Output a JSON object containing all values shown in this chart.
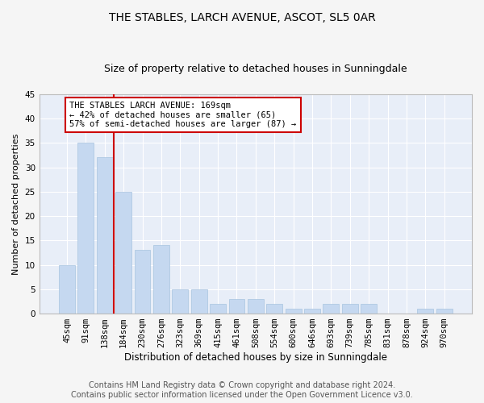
{
  "title": "THE STABLES, LARCH AVENUE, ASCOT, SL5 0AR",
  "subtitle": "Size of property relative to detached houses in Sunningdale",
  "xlabel": "Distribution of detached houses by size in Sunningdale",
  "ylabel": "Number of detached properties",
  "categories": [
    "45sqm",
    "91sqm",
    "138sqm",
    "184sqm",
    "230sqm",
    "276sqm",
    "323sqm",
    "369sqm",
    "415sqm",
    "461sqm",
    "508sqm",
    "554sqm",
    "600sqm",
    "646sqm",
    "693sqm",
    "739sqm",
    "785sqm",
    "831sqm",
    "878sqm",
    "924sqm",
    "970sqm"
  ],
  "values": [
    10,
    35,
    32,
    25,
    13,
    14,
    5,
    5,
    2,
    3,
    3,
    2,
    1,
    1,
    2,
    2,
    2,
    0,
    0,
    1,
    1
  ],
  "bar_color": "#c5d8f0",
  "bar_edgecolor": "#a8c4e0",
  "vline_color": "#cc0000",
  "vline_x_index": 2.5,
  "ylim": [
    0,
    45
  ],
  "yticks": [
    0,
    5,
    10,
    15,
    20,
    25,
    30,
    35,
    40,
    45
  ],
  "annotation_text": "THE STABLES LARCH AVENUE: 169sqm\n← 42% of detached houses are smaller (65)\n57% of semi-detached houses are larger (87) →",
  "annotation_box_facecolor": "#ffffff",
  "annotation_box_edgecolor": "#cc0000",
  "footer_line1": "Contains HM Land Registry data © Crown copyright and database right 2024.",
  "footer_line2": "Contains public sector information licensed under the Open Government Licence v3.0.",
  "plot_bg_color": "#e8eef8",
  "fig_bg_color": "#f5f5f5",
  "grid_color": "#ffffff",
  "title_fontsize": 10,
  "subtitle_fontsize": 9,
  "xlabel_fontsize": 8.5,
  "ylabel_fontsize": 8,
  "tick_fontsize": 7.5,
  "annotation_fontsize": 7.5,
  "footer_fontsize": 7
}
